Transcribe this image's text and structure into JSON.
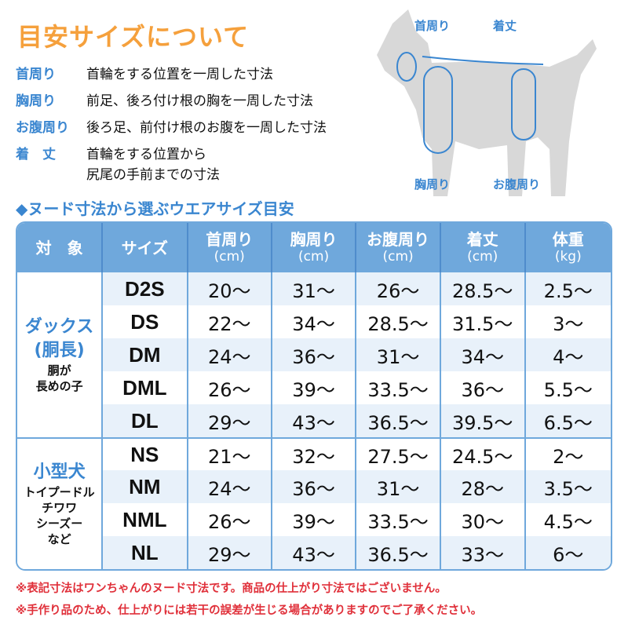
{
  "title": "目安サイズについて",
  "definitions": [
    {
      "term": "首周り",
      "desc": "首輪をする位置を一周した寸法"
    },
    {
      "term": "胸周り",
      "desc": "前足、後ろ付け根の胸を一周した寸法"
    },
    {
      "term": "お腹周り",
      "desc": "後ろ足、前付け根のお腹を一周した寸法"
    },
    {
      "term": "着　丈",
      "desc": "首輪をする位置から\n尻尾の手前までの寸法"
    }
  ],
  "diagram_labels": {
    "neck": "首周り",
    "length": "着丈",
    "chest": "胸周り",
    "belly": "お腹周り"
  },
  "subtitle": "◆ヌード寸法から選ぶウエアサイズ目安",
  "table": {
    "headers": [
      {
        "label": "対　象",
        "unit": ""
      },
      {
        "label": "サイズ",
        "unit": ""
      },
      {
        "label": "首周り",
        "unit": "(cm)"
      },
      {
        "label": "胸周り",
        "unit": "(cm)"
      },
      {
        "label": "お腹周り",
        "unit": "(cm)"
      },
      {
        "label": "着丈",
        "unit": "(cm)"
      },
      {
        "label": "体重",
        "unit": "(kg)"
      }
    ],
    "groups": [
      {
        "name": "ダックス\n(胴長)",
        "note": "胴が\n長めの子",
        "rows": [
          [
            "D2S",
            "20〜",
            "31〜",
            "26〜",
            "28.5〜",
            "2.5〜"
          ],
          [
            "DS",
            "22〜",
            "34〜",
            "28.5〜",
            "31.5〜",
            "3〜"
          ],
          [
            "DM",
            "24〜",
            "36〜",
            "31〜",
            "34〜",
            "4〜"
          ],
          [
            "DML",
            "26〜",
            "39〜",
            "33.5〜",
            "36〜",
            "5.5〜"
          ],
          [
            "DL",
            "29〜",
            "43〜",
            "36.5〜",
            "39.5〜",
            "6.5〜"
          ]
        ]
      },
      {
        "name": "小型犬",
        "note": "トイプードル\nチワワ\nシーズー\nなど",
        "rows": [
          [
            "NS",
            "21〜",
            "32〜",
            "27.5〜",
            "24.5〜",
            "2〜"
          ],
          [
            "NM",
            "24〜",
            "36〜",
            "31〜",
            "28〜",
            "3.5〜"
          ],
          [
            "NML",
            "26〜",
            "39〜",
            "33.5〜",
            "30〜",
            "4.5〜"
          ],
          [
            "NL",
            "29〜",
            "43〜",
            "36.5〜",
            "33〜",
            "6〜"
          ]
        ]
      }
    ]
  },
  "notes": [
    "※表記寸法はワンちゃんのヌード寸法です。商品の仕上がり寸法ではございません。",
    "※手作り品のため、仕上がりには若干の誤差が生じる場合がありますのでご了承ください。"
  ],
  "colors": {
    "title": "#f5a03c",
    "accent": "#3a86d0",
    "header": "#6fa8dc",
    "note": "#e0303a"
  }
}
